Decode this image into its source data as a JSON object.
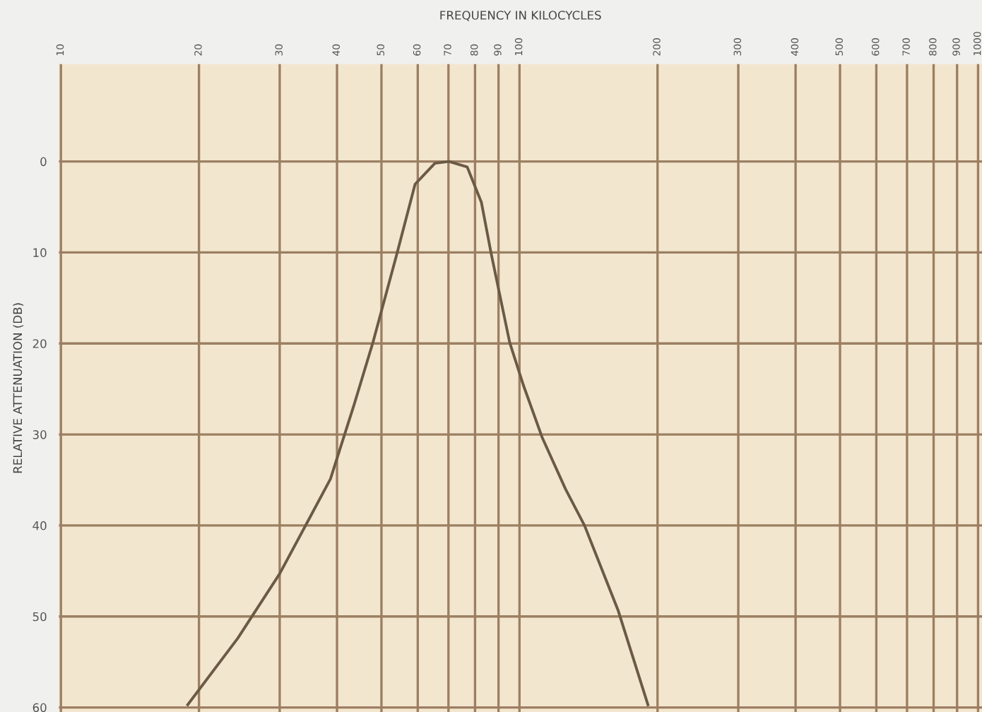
{
  "chart_data": {
    "type": "line",
    "xlabel": "FREQUENCY IN KILOCYCLES",
    "ylabel": "RELATIVE ATTENUATION (DB)",
    "log": "x",
    "grid": true,
    "marker": "none",
    "line_style": "solid",
    "xlim": [
      9.9,
      1020
    ],
    "xticks": [
      10,
      20,
      30,
      40,
      50,
      60,
      70,
      80,
      90,
      100,
      200,
      300,
      400,
      500,
      600,
      700,
      800,
      900,
      1000
    ],
    "ylim": [
      60.5,
      -10.7
    ],
    "yticks": [
      0,
      10,
      20,
      30,
      40,
      50,
      60
    ],
    "series": [
      {
        "color": "#6b5a45",
        "x": [
          18.9,
          24.3,
          30,
          34.5,
          38.7,
          43.6,
          47.9,
          54,
          59.2,
          65.4,
          70.2,
          76.9,
          82.6,
          86.8,
          95.2,
          102,
          112,
          126,
          138.6,
          164,
          190.6
        ],
        "values": [
          59.7,
          52.4,
          45.3,
          39.6,
          34.9,
          26.7,
          19.9,
          10.2,
          2.5,
          0.2,
          0,
          0.6,
          4.5,
          10.2,
          19.9,
          24.6,
          30.3,
          36,
          40,
          49.3,
          59.7
        ]
      }
    ]
  }
}
